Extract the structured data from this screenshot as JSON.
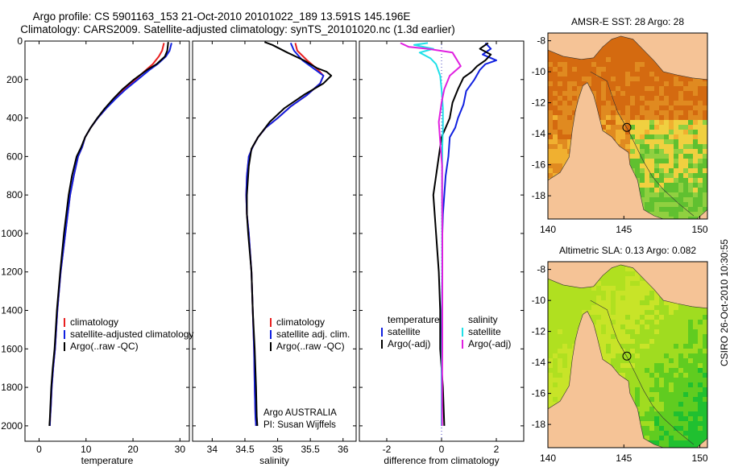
{
  "header": {
    "line1": "Argo profile: CS 5901163_153 21-Oct-2010 20101022_189 13.591S 145.196E",
    "line2": "Climatology: CARS2009. Satellite-adjusted climatology: synTS_20101020.nc (1.3d earlier)"
  },
  "side_label": "CSIRO 26-Oct-2010 10:30:55",
  "colors": {
    "climatology": "#e82020",
    "satellite": "#1020e0",
    "argo": "#000000",
    "sat_salinity": "#20e0e8",
    "argo_salinity": "#e020e0",
    "land": "#f5c396",
    "zero_line": "#4040c0"
  },
  "chart_data": [
    {
      "type": "line",
      "id": "temperature",
      "xlabel": "temperature",
      "ylabel": "",
      "xlim": [
        -3,
        32
      ],
      "ylim": [
        2080,
        0
      ],
      "xticks": [
        0,
        10,
        20,
        30
      ],
      "yticks": [
        0,
        200,
        400,
        600,
        800,
        1000,
        1200,
        1400,
        1600,
        1800,
        2000
      ],
      "legend": [
        "climatology",
        "satellite-adjusted climatology",
        "Argo(..raw -QC)"
      ],
      "series": [
        {
          "name": "climatology",
          "color": "#e82020",
          "x": [
            26.6,
            26.2,
            25.5,
            24.2,
            22.8,
            20.5,
            18.2,
            16.2,
            14.3,
            12.5,
            11.0,
            9.8,
            9.2,
            8.3,
            7.4,
            6.6,
            6.1,
            5.6,
            4.6,
            3.9,
            3.4,
            3.0,
            2.7,
            2.5,
            2.35,
            2.3
          ],
          "y": [
            10,
            50,
            80,
            120,
            150,
            200,
            250,
            300,
            350,
            400,
            450,
            500,
            550,
            600,
            700,
            800,
            900,
            1000,
            1200,
            1400,
            1600,
            1700,
            1800,
            1900,
            1960,
            2000
          ]
        },
        {
          "name": "satellite-adjusted climatology",
          "color": "#1020e0",
          "x": [
            28.2,
            27.8,
            27.0,
            25.2,
            23.5,
            21.0,
            18.5,
            16.3,
            14.3,
            12.5,
            11.0,
            9.8,
            9.2,
            8.3,
            7.4,
            6.6,
            6.1,
            5.6,
            4.6,
            3.9,
            3.4,
            3.0,
            2.7,
            2.5,
            2.35,
            2.3
          ],
          "y": [
            10,
            50,
            80,
            120,
            150,
            200,
            250,
            300,
            350,
            400,
            450,
            500,
            550,
            600,
            700,
            800,
            900,
            1000,
            1200,
            1400,
            1600,
            1700,
            1800,
            1900,
            1960,
            2000
          ]
        },
        {
          "name": "Argo(..raw -QC)",
          "color": "#000000",
          "x": [
            27.5,
            27.3,
            26.8,
            25.0,
            23.0,
            20.2,
            17.8,
            15.8,
            14.0,
            12.4,
            11.0,
            9.8,
            9.0,
            8.0,
            7.0,
            6.3,
            5.8,
            5.3,
            4.5,
            3.8,
            3.3,
            2.9,
            2.6,
            2.4,
            2.3,
            2.2
          ],
          "y": [
            5,
            50,
            80,
            120,
            150,
            200,
            250,
            300,
            350,
            400,
            450,
            500,
            550,
            600,
            700,
            800,
            900,
            1000,
            1200,
            1400,
            1600,
            1700,
            1800,
            1900,
            1960,
            2000
          ]
        }
      ]
    },
    {
      "type": "line",
      "id": "salinity",
      "xlabel": "salinity",
      "xlim": [
        33.7,
        36.2
      ],
      "ylim": [
        2080,
        0
      ],
      "xticks": [
        34,
        34.5,
        35,
        35.5,
        36
      ],
      "legend": [
        "climatology",
        "satellite adj. clim.",
        "Argo(..raw -QC)"
      ],
      "annotation": [
        "Argo AUSTRALIA",
        "PI: Susan Wijffels"
      ],
      "series": [
        {
          "name": "climatology",
          "color": "#e82020",
          "x": [
            35.27,
            35.3,
            35.45,
            35.62,
            35.7,
            35.65,
            35.45,
            35.2,
            35.0,
            34.82,
            34.7,
            34.62,
            34.56,
            34.53,
            34.52,
            34.53,
            34.56,
            34.6,
            34.62,
            34.64,
            34.65,
            34.66,
            34.67
          ],
          "y": [
            10,
            50,
            100,
            150,
            180,
            220,
            280,
            340,
            400,
            450,
            500,
            550,
            600,
            700,
            800,
            900,
            1000,
            1200,
            1400,
            1600,
            1800,
            1950,
            2000
          ]
        },
        {
          "name": "satellite adj. clim.",
          "color": "#1020e0",
          "x": [
            35.2,
            35.25,
            35.38,
            35.58,
            35.7,
            35.65,
            35.45,
            35.2,
            35.0,
            34.82,
            34.7,
            34.62,
            34.56,
            34.53,
            34.52,
            34.53,
            34.56,
            34.6,
            34.62,
            34.64,
            34.65,
            34.66,
            34.67
          ],
          "y": [
            10,
            50,
            100,
            150,
            180,
            220,
            280,
            340,
            400,
            450,
            500,
            550,
            600,
            700,
            800,
            900,
            1000,
            1200,
            1400,
            1600,
            1800,
            1950,
            2000
          ]
        },
        {
          "name": "Argo(..raw -QC)",
          "color": "#000000",
          "x": [
            34.8,
            34.92,
            35.15,
            35.4,
            35.6,
            35.75,
            35.82,
            35.7,
            35.4,
            35.1,
            34.88,
            34.7,
            34.6,
            34.56,
            34.53,
            34.53,
            34.55,
            34.6,
            34.62,
            34.65,
            34.67,
            34.68,
            34.69
          ],
          "y": [
            5,
            20,
            60,
            100,
            140,
            160,
            180,
            220,
            280,
            350,
            420,
            500,
            560,
            650,
            800,
            900,
            1000,
            1200,
            1400,
            1600,
            1800,
            1950,
            2000
          ]
        }
      ]
    },
    {
      "type": "line",
      "id": "difference",
      "xlabel": "difference from climatology",
      "xlim": [
        -3,
        3
      ],
      "ylim": [
        2080,
        0
      ],
      "xticks": [
        -2,
        0,
        2
      ],
      "legend_left": {
        "title": "temperature",
        "items": [
          "satellite",
          "Argo(-adj)"
        ]
      },
      "legend_right": {
        "title": "salinity",
        "items": [
          "satellite",
          "Argo(-adj)"
        ]
      },
      "series": [
        {
          "name": "temperature satellite",
          "color": "#1020e0",
          "x": [
            1.6,
            1.8,
            1.5,
            2.0,
            1.6,
            1.4,
            1.2,
            0.9,
            0.8,
            0.6,
            0.5,
            0.3,
            0.25,
            0.15,
            0.1,
            0.05,
            0.03,
            0.03,
            0.0,
            0.0,
            0.0,
            0.0
          ],
          "y": [
            10,
            40,
            70,
            100,
            120,
            150,
            200,
            260,
            330,
            400,
            450,
            500,
            600,
            700,
            800,
            900,
            1000,
            1200,
            1500,
            1700,
            1900,
            2000
          ]
        },
        {
          "name": "temperature Argo(-adj)",
          "color": "#000000",
          "x": [
            1.7,
            1.4,
            1.8,
            1.6,
            1.3,
            1.1,
            0.8,
            0.6,
            0.4,
            0.3,
            0.0,
            -0.1,
            -0.2,
            -0.3,
            -0.25,
            -0.2,
            -0.1,
            -0.05,
            -0.05,
            0.05,
            0.1
          ],
          "y": [
            10,
            40,
            70,
            100,
            130,
            160,
            190,
            250,
            320,
            400,
            500,
            600,
            700,
            800,
            900,
            1000,
            1200,
            1400,
            1600,
            1800,
            2000
          ]
        },
        {
          "name": "salinity satellite",
          "color": "#20e0e8",
          "x": [
            -0.5,
            -1.0,
            -0.3,
            -0.8,
            -0.4,
            -0.2,
            -0.05,
            0.0,
            0.05,
            0.05,
            0.03,
            0.02,
            0.02,
            0.02,
            0.02,
            0.02,
            0.0,
            0.0
          ],
          "y": [
            10,
            20,
            40,
            60,
            90,
            120,
            180,
            250,
            350,
            450,
            550,
            700,
            900,
            1100,
            1300,
            1500,
            1800,
            2000
          ]
        },
        {
          "name": "salinity Argo(-adj)",
          "color": "#e020e0",
          "x": [
            -1.5,
            -1.2,
            -0.5,
            0.4,
            0.7,
            0.3,
            0.1,
            0.0,
            -0.1,
            -0.05,
            0.02,
            0.02,
            0.03,
            0.03,
            0.03,
            0.03,
            0.02,
            0.02
          ],
          "y": [
            10,
            30,
            40,
            60,
            130,
            180,
            250,
            320,
            420,
            520,
            650,
            800,
            1000,
            1200,
            1400,
            1600,
            1800,
            2000
          ]
        }
      ]
    },
    {
      "type": "heatmap",
      "id": "sst-map",
      "title": "AMSR-E SST: 28 Argo: 28",
      "xlim": [
        140,
        150.5
      ],
      "ylim": [
        -19.5,
        -7.5
      ],
      "xticks": [
        140,
        145,
        150
      ],
      "yticks": [
        -8,
        -10,
        -12,
        -14,
        -16,
        -18
      ],
      "marker": {
        "lon": 145.196,
        "lat": -13.591
      }
    },
    {
      "type": "heatmap",
      "id": "sla-map",
      "title": "Altimetric SLA: 0.13 Argo: 0.082",
      "xlim": [
        140,
        150.5
      ],
      "ylim": [
        -19.5,
        -7.5
      ],
      "xticks": [
        140,
        145,
        150
      ],
      "yticks": [
        -8,
        -10,
        -12,
        -14,
        -16,
        -18
      ],
      "marker": {
        "lon": 145.196,
        "lat": -13.591
      }
    }
  ]
}
